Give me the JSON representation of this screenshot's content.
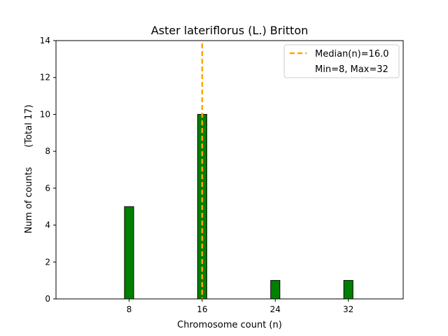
{
  "chart_data": {
    "type": "bar",
    "title": "Aster lateriflorus (L.) Britton",
    "xlabel": "Chromosome count (n)",
    "ylabel": "Num of counts",
    "ylabel_total": "(Total 17)",
    "xlim": [
      0,
      38
    ],
    "ylim": [
      0,
      14
    ],
    "xticks": [
      8,
      16,
      24,
      32
    ],
    "yticks": [
      0,
      2,
      4,
      6,
      8,
      10,
      12,
      14
    ],
    "bar_width": 1,
    "bars": [
      {
        "x": 8,
        "value": 5
      },
      {
        "x": 16,
        "value": 10
      },
      {
        "x": 24,
        "value": 1
      },
      {
        "x": 32,
        "value": 1
      }
    ],
    "bar_color": "#008000",
    "median": {
      "value": 16.0,
      "label": "Median(n)=16.0",
      "color": "#ffa500"
    },
    "minmax_label": "Min=8, Max=32",
    "legend_position": "top-right",
    "grid": false
  }
}
